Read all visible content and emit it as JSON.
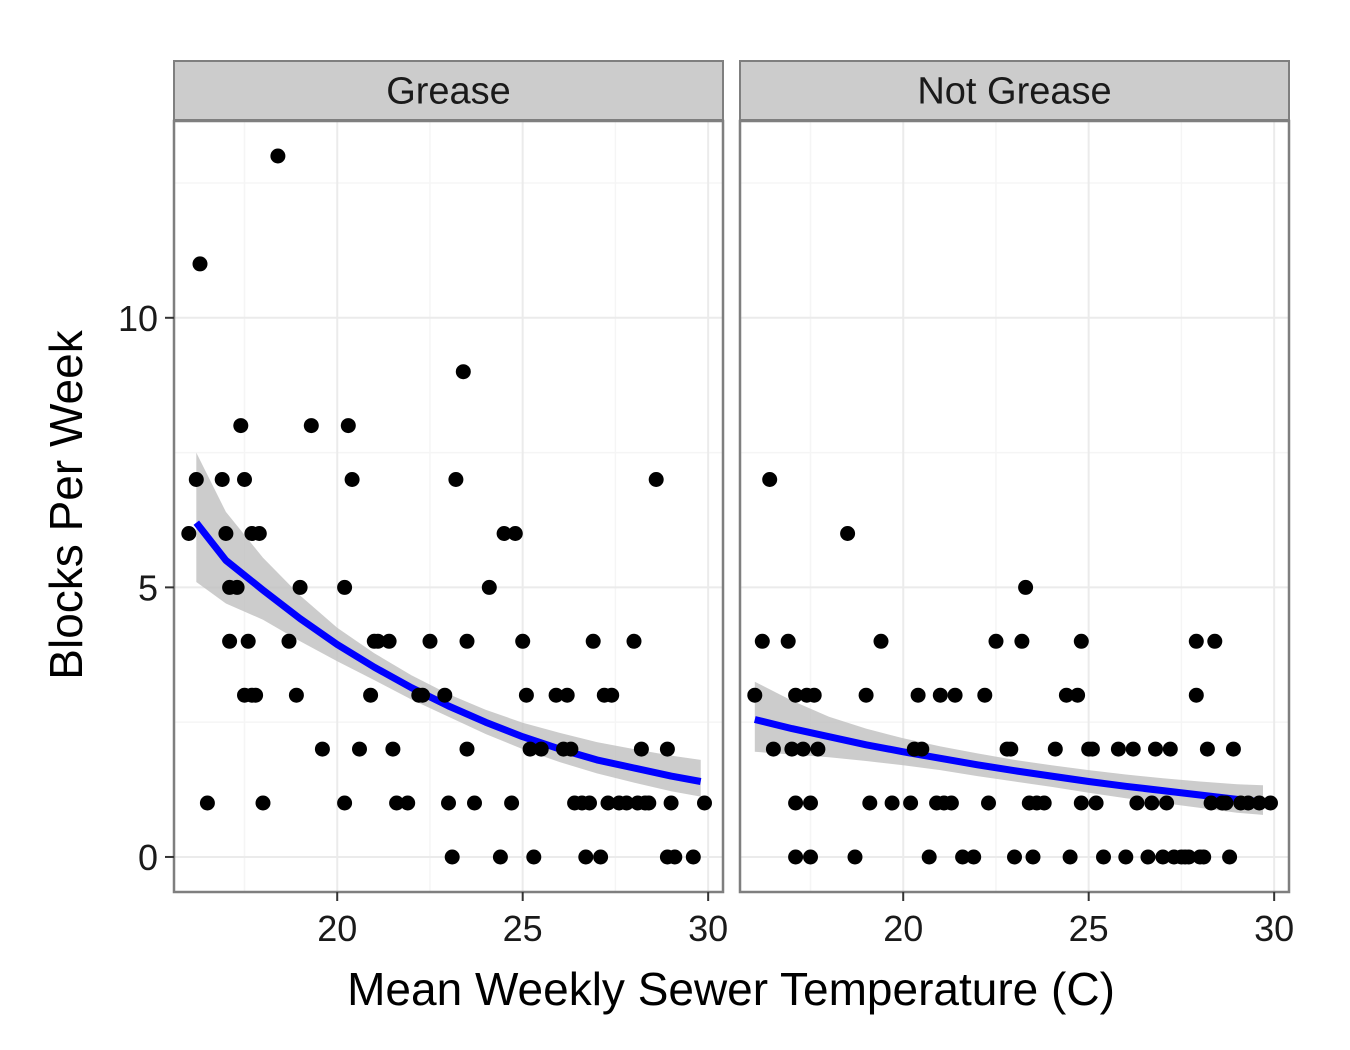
{
  "chart_data": {
    "type": "scatter",
    "xlabel": "Mean Weekly Sewer Temperature (C)",
    "ylabel": "Blocks Per Week",
    "xlim": [
      15.6,
      30.4
    ],
    "ylim": [
      -0.65,
      13.65
    ],
    "x_ticks": [
      {
        "value": 20,
        "label": "20"
      },
      {
        "value": 25,
        "label": "25"
      },
      {
        "value": 30,
        "label": "30"
      }
    ],
    "y_ticks": [
      {
        "value": 0,
        "label": "0"
      },
      {
        "value": 5,
        "label": "5"
      },
      {
        "value": 10,
        "label": "10"
      }
    ],
    "grid": true,
    "colors": {
      "points": "#000000",
      "fit_line": "#0000ff",
      "confidence_band": "#bfbfbf",
      "panel_background": "#ffffff",
      "grid": "#ebebeb",
      "strip_background": "#cccccc",
      "border": "#7f7f7f"
    },
    "panels": [
      {
        "label": "Grease",
        "points": [
          [
            16.0,
            6
          ],
          [
            16.2,
            7
          ],
          [
            16.3,
            11
          ],
          [
            16.5,
            1
          ],
          [
            16.9,
            7
          ],
          [
            17.0,
            6
          ],
          [
            17.1,
            4
          ],
          [
            17.1,
            5
          ],
          [
            17.3,
            5
          ],
          [
            17.4,
            8
          ],
          [
            17.5,
            7
          ],
          [
            17.5,
            3
          ],
          [
            17.6,
            4
          ],
          [
            17.7,
            3
          ],
          [
            17.7,
            6
          ],
          [
            17.8,
            3
          ],
          [
            17.9,
            6
          ],
          [
            18.0,
            1
          ],
          [
            18.4,
            13
          ],
          [
            18.7,
            4
          ],
          [
            18.9,
            3
          ],
          [
            19.0,
            5
          ],
          [
            19.3,
            8
          ],
          [
            19.6,
            2
          ],
          [
            20.2,
            1
          ],
          [
            20.2,
            5
          ],
          [
            20.3,
            8
          ],
          [
            20.4,
            7
          ],
          [
            20.6,
            2
          ],
          [
            20.9,
            3
          ],
          [
            21.0,
            4
          ],
          [
            21.1,
            4
          ],
          [
            21.4,
            4
          ],
          [
            21.5,
            2
          ],
          [
            21.6,
            1
          ],
          [
            21.9,
            1
          ],
          [
            22.2,
            3
          ],
          [
            22.3,
            3
          ],
          [
            22.5,
            4
          ],
          [
            22.9,
            3
          ],
          [
            23.0,
            1
          ],
          [
            23.1,
            0
          ],
          [
            23.2,
            7
          ],
          [
            23.4,
            9
          ],
          [
            23.5,
            4
          ],
          [
            23.5,
            2
          ],
          [
            23.7,
            1
          ],
          [
            24.1,
            5
          ],
          [
            24.4,
            0
          ],
          [
            24.5,
            6
          ],
          [
            24.7,
            1
          ],
          [
            24.8,
            6
          ],
          [
            25.0,
            4
          ],
          [
            25.1,
            3
          ],
          [
            25.2,
            2
          ],
          [
            25.3,
            0
          ],
          [
            25.5,
            2
          ],
          [
            25.9,
            3
          ],
          [
            26.1,
            2
          ],
          [
            26.2,
            3
          ],
          [
            26.3,
            2
          ],
          [
            26.4,
            1
          ],
          [
            26.6,
            1
          ],
          [
            26.7,
            0
          ],
          [
            26.8,
            1
          ],
          [
            26.9,
            4
          ],
          [
            27.1,
            0
          ],
          [
            27.2,
            3
          ],
          [
            27.3,
            1
          ],
          [
            27.4,
            3
          ],
          [
            27.6,
            1
          ],
          [
            27.8,
            1
          ],
          [
            28.0,
            4
          ],
          [
            28.1,
            1
          ],
          [
            28.2,
            2
          ],
          [
            28.3,
            1
          ],
          [
            28.4,
            1
          ],
          [
            28.6,
            7
          ],
          [
            28.9,
            0
          ],
          [
            28.9,
            2
          ],
          [
            29.0,
            1
          ],
          [
            29.1,
            0
          ],
          [
            29.6,
            0
          ],
          [
            29.9,
            1
          ]
        ],
        "fit": [
          [
            16.2,
            6.2
          ],
          [
            17.0,
            5.5
          ],
          [
            18.0,
            4.95
          ],
          [
            19.0,
            4.42
          ],
          [
            20.0,
            3.94
          ],
          [
            21.0,
            3.52
          ],
          [
            22.0,
            3.14
          ],
          [
            23.0,
            2.8
          ],
          [
            24.0,
            2.5
          ],
          [
            25.0,
            2.23
          ],
          [
            26.0,
            2.0
          ],
          [
            27.0,
            1.8
          ],
          [
            28.0,
            1.65
          ],
          [
            29.0,
            1.5
          ],
          [
            29.8,
            1.4
          ]
        ],
        "band_upper": [
          [
            16.2,
            7.5
          ],
          [
            17.0,
            6.4
          ],
          [
            18.0,
            5.55
          ],
          [
            19.0,
            4.85
          ],
          [
            20.0,
            4.25
          ],
          [
            21.0,
            3.78
          ],
          [
            22.0,
            3.37
          ],
          [
            23.0,
            3.02
          ],
          [
            24.0,
            2.73
          ],
          [
            25.0,
            2.49
          ],
          [
            26.0,
            2.3
          ],
          [
            27.0,
            2.13
          ],
          [
            28.0,
            2.0
          ],
          [
            29.0,
            1.88
          ],
          [
            29.8,
            1.8
          ]
        ],
        "band_lower": [
          [
            16.2,
            5.1
          ],
          [
            17.0,
            4.7
          ],
          [
            18.0,
            4.4
          ],
          [
            19.0,
            4.0
          ],
          [
            20.0,
            3.63
          ],
          [
            21.0,
            3.28
          ],
          [
            22.0,
            2.92
          ],
          [
            23.0,
            2.6
          ],
          [
            24.0,
            2.28
          ],
          [
            25.0,
            2.0
          ],
          [
            26.0,
            1.76
          ],
          [
            27.0,
            1.55
          ],
          [
            28.0,
            1.38
          ],
          [
            29.0,
            1.22
          ],
          [
            29.8,
            1.12
          ]
        ]
      },
      {
        "label": "Not Grease",
        "points": [
          [
            16.0,
            3
          ],
          [
            16.2,
            4
          ],
          [
            16.4,
            7
          ],
          [
            16.5,
            2
          ],
          [
            16.9,
            4
          ],
          [
            17.0,
            2
          ],
          [
            17.1,
            3
          ],
          [
            17.1,
            1
          ],
          [
            17.1,
            0
          ],
          [
            17.3,
            2
          ],
          [
            17.4,
            3
          ],
          [
            17.5,
            1
          ],
          [
            17.5,
            0
          ],
          [
            17.6,
            3
          ],
          [
            17.7,
            2
          ],
          [
            18.5,
            6
          ],
          [
            18.7,
            0
          ],
          [
            19.0,
            3
          ],
          [
            19.1,
            1
          ],
          [
            19.4,
            4
          ],
          [
            19.7,
            1
          ],
          [
            20.2,
            1
          ],
          [
            20.3,
            2
          ],
          [
            20.4,
            3
          ],
          [
            20.5,
            2
          ],
          [
            20.7,
            0
          ],
          [
            20.9,
            1
          ],
          [
            21.0,
            3
          ],
          [
            21.1,
            1
          ],
          [
            21.3,
            1
          ],
          [
            21.4,
            3
          ],
          [
            21.6,
            0
          ],
          [
            21.9,
            0
          ],
          [
            22.2,
            3
          ],
          [
            22.3,
            1
          ],
          [
            22.5,
            4
          ],
          [
            22.8,
            2
          ],
          [
            22.9,
            2
          ],
          [
            23.0,
            0
          ],
          [
            23.2,
            4
          ],
          [
            23.3,
            5
          ],
          [
            23.4,
            1
          ],
          [
            23.5,
            0
          ],
          [
            23.6,
            1
          ],
          [
            23.8,
            1
          ],
          [
            24.1,
            2
          ],
          [
            24.4,
            3
          ],
          [
            24.5,
            0
          ],
          [
            24.7,
            3
          ],
          [
            24.8,
            4
          ],
          [
            24.8,
            1
          ],
          [
            25.0,
            2
          ],
          [
            25.1,
            2
          ],
          [
            25.2,
            1
          ],
          [
            25.4,
            0
          ],
          [
            25.8,
            2
          ],
          [
            26.0,
            0
          ],
          [
            26.2,
            2
          ],
          [
            26.3,
            1
          ],
          [
            26.6,
            0
          ],
          [
            26.7,
            1
          ],
          [
            26.8,
            2
          ],
          [
            27.0,
            0
          ],
          [
            27.1,
            1
          ],
          [
            27.2,
            2
          ],
          [
            27.3,
            0
          ],
          [
            27.5,
            0
          ],
          [
            27.6,
            0
          ],
          [
            27.7,
            0
          ],
          [
            27.9,
            3
          ],
          [
            27.9,
            4
          ],
          [
            28.0,
            0
          ],
          [
            28.1,
            0
          ],
          [
            28.2,
            2
          ],
          [
            28.3,
            1
          ],
          [
            28.4,
            4
          ],
          [
            28.6,
            1
          ],
          [
            28.7,
            1
          ],
          [
            28.8,
            0
          ],
          [
            28.9,
            2
          ],
          [
            29.1,
            1
          ],
          [
            29.3,
            1
          ],
          [
            29.6,
            1
          ],
          [
            29.9,
            1
          ]
        ],
        "fit": [
          [
            16.0,
            2.55
          ],
          [
            17.0,
            2.38
          ],
          [
            18.0,
            2.23
          ],
          [
            19.0,
            2.08
          ],
          [
            20.0,
            1.95
          ],
          [
            21.0,
            1.83
          ],
          [
            22.0,
            1.71
          ],
          [
            23.0,
            1.6
          ],
          [
            24.0,
            1.5
          ],
          [
            25.0,
            1.4
          ],
          [
            26.0,
            1.31
          ],
          [
            27.0,
            1.23
          ],
          [
            28.0,
            1.15
          ],
          [
            29.0,
            1.07
          ],
          [
            29.7,
            1.02
          ]
        ],
        "band_upper": [
          [
            16.0,
            3.25
          ],
          [
            17.0,
            2.9
          ],
          [
            18.0,
            2.6
          ],
          [
            19.0,
            2.38
          ],
          [
            20.0,
            2.2
          ],
          [
            21.0,
            2.05
          ],
          [
            22.0,
            1.92
          ],
          [
            23.0,
            1.8
          ],
          [
            24.0,
            1.7
          ],
          [
            25.0,
            1.61
          ],
          [
            26.0,
            1.53
          ],
          [
            27.0,
            1.46
          ],
          [
            28.0,
            1.4
          ],
          [
            29.0,
            1.35
          ],
          [
            29.7,
            1.33
          ]
        ],
        "band_lower": [
          [
            16.0,
            1.95
          ],
          [
            17.0,
            1.9
          ],
          [
            18.0,
            1.85
          ],
          [
            19.0,
            1.78
          ],
          [
            20.0,
            1.7
          ],
          [
            21.0,
            1.61
          ],
          [
            22.0,
            1.5
          ],
          [
            23.0,
            1.4
          ],
          [
            24.0,
            1.3
          ],
          [
            25.0,
            1.19
          ],
          [
            26.0,
            1.09
          ],
          [
            27.0,
            1.0
          ],
          [
            28.0,
            0.91
          ],
          [
            29.0,
            0.82
          ],
          [
            29.7,
            0.78
          ]
        ]
      }
    ]
  }
}
